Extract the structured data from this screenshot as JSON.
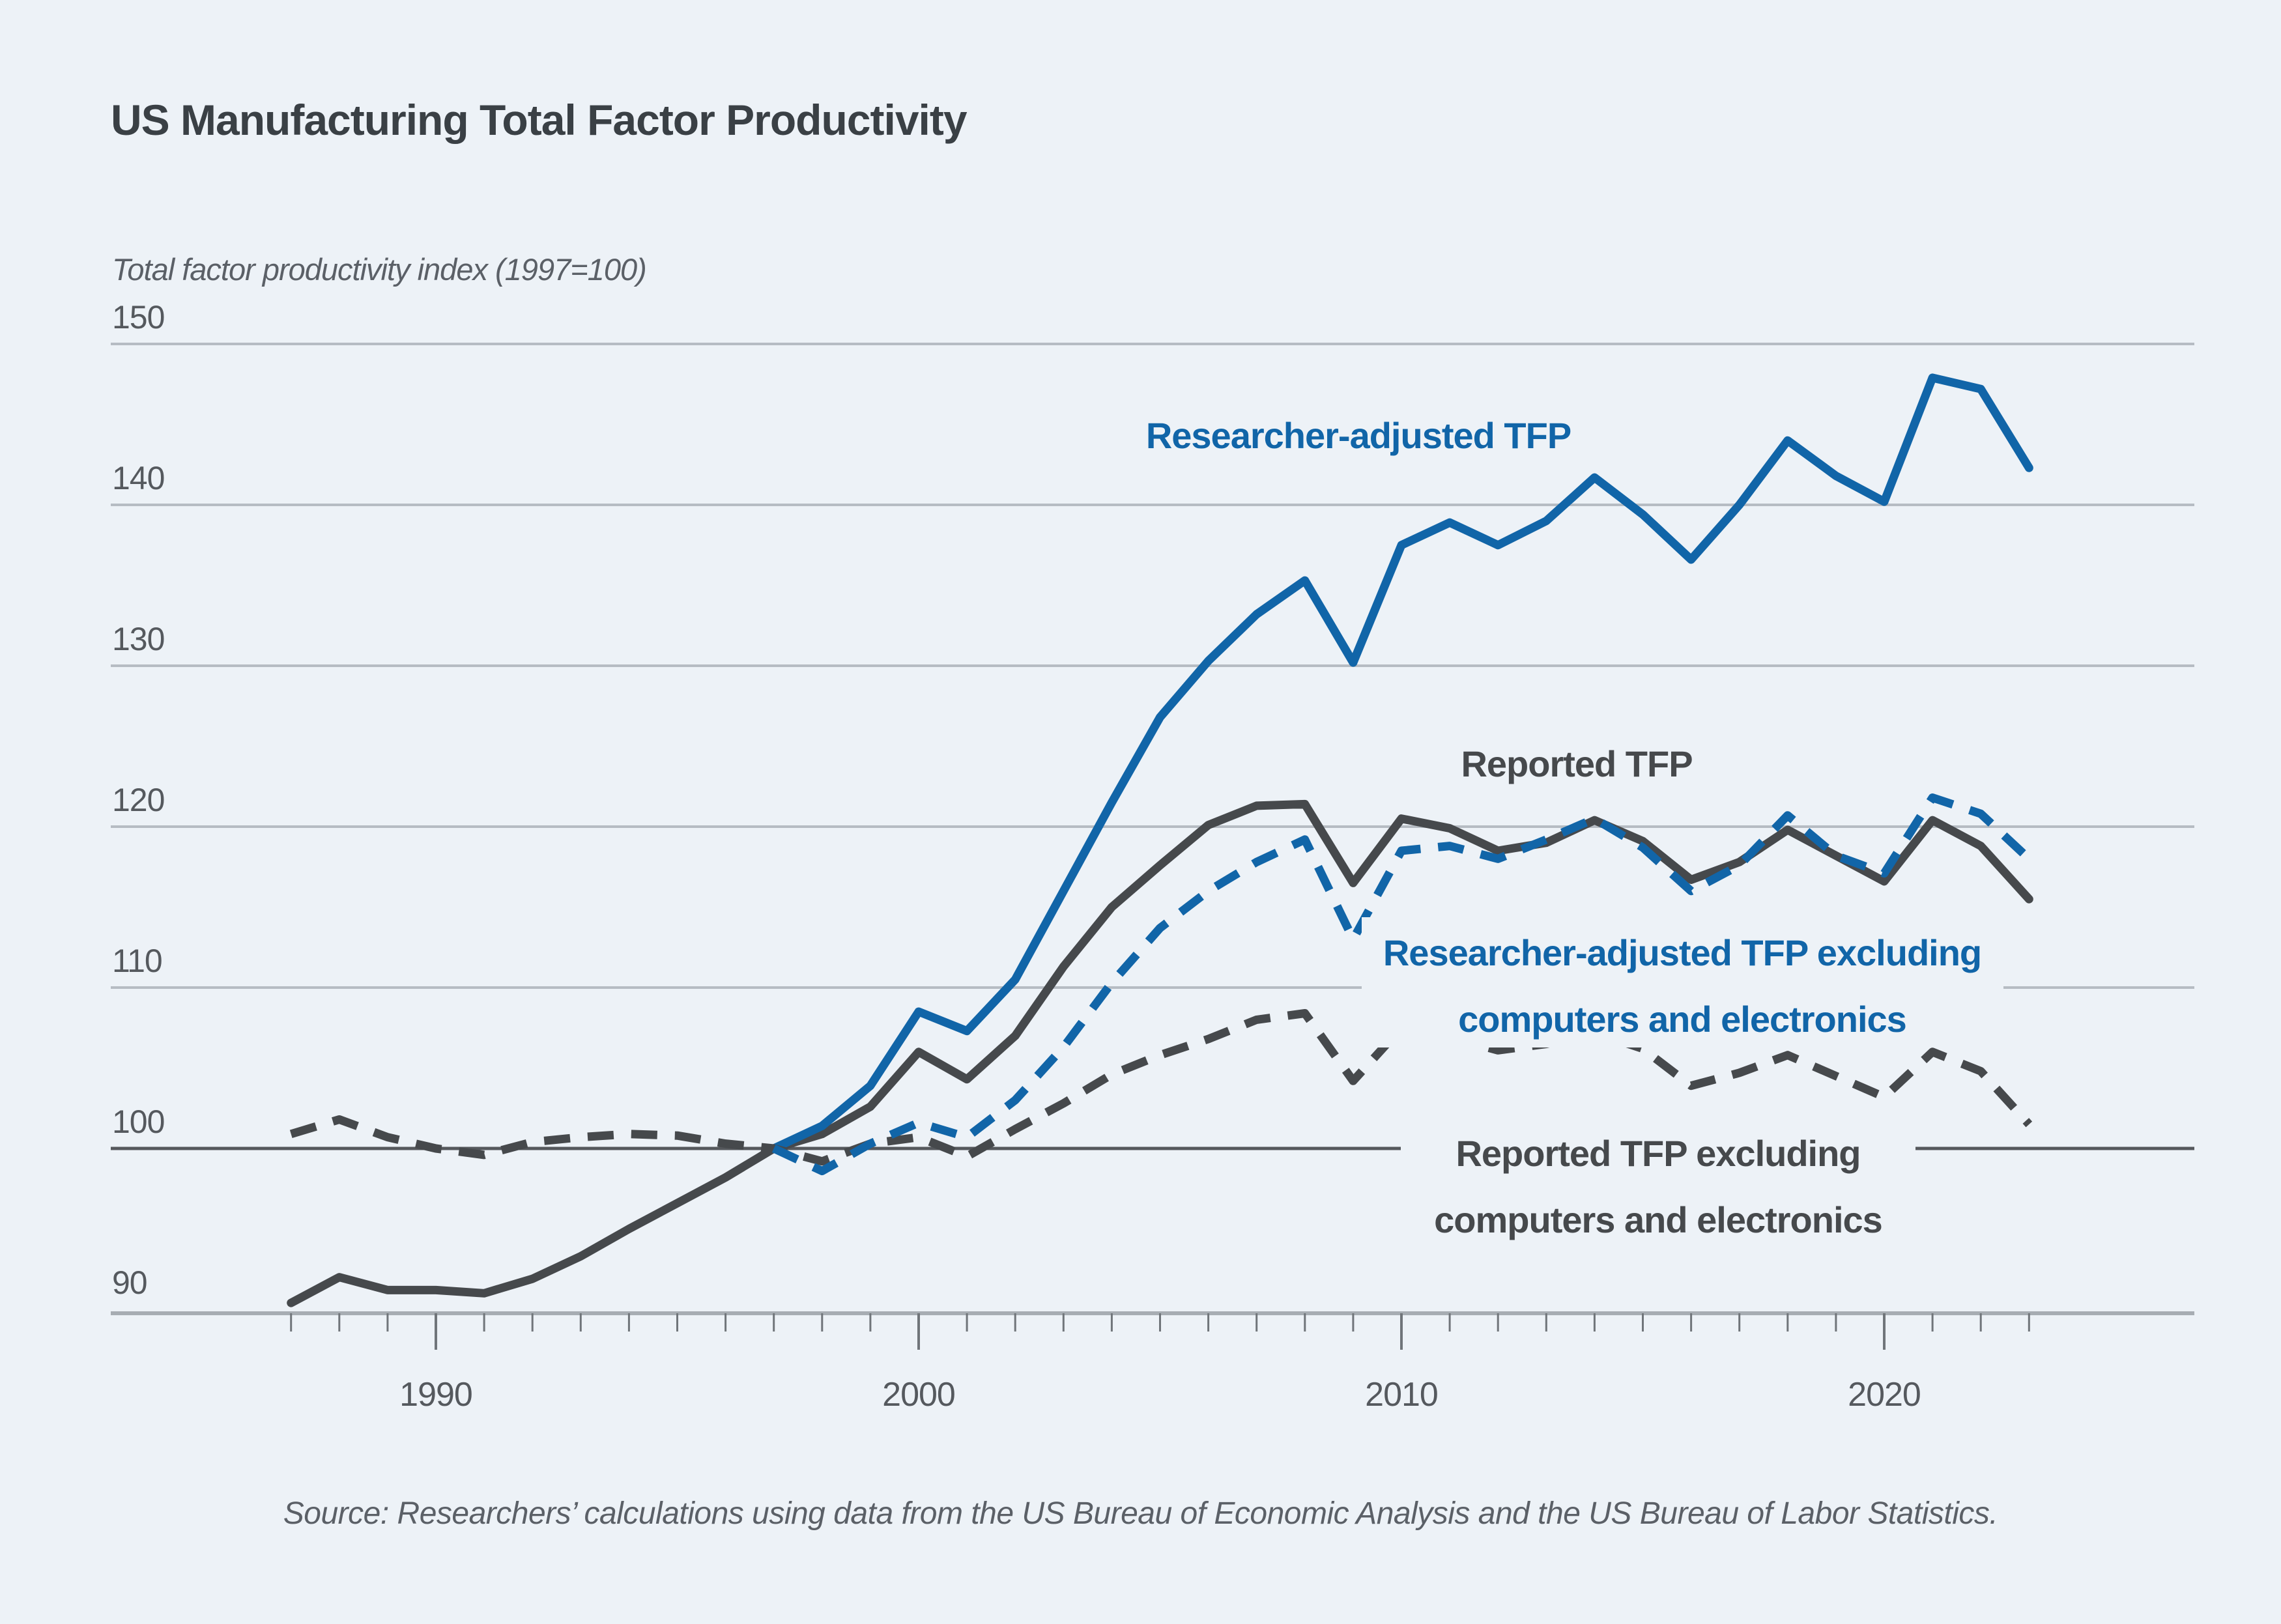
{
  "title": "US Manufacturing Total Factor Productivity",
  "y_axis_title": "Total factor productivity index (1997=100)",
  "source": "Source: Researchers’ calculations using data from the US Bureau of Economic Analysis and the US Bureau of Labor Statistics.",
  "colors": {
    "background": "#edf2f7",
    "blue": "#1165a8",
    "dark": "#46494c",
    "gridline": "#b6bcc3",
    "reference_line": "#55585c",
    "axis_line": "#a7adb3",
    "tick": "#70757a"
  },
  "chart_data": {
    "type": "line",
    "title": "US Manufacturing Total Factor Productivity",
    "xlabel": "",
    "ylabel": "Total factor productivity index (1997=100)",
    "ylim": [
      90,
      150
    ],
    "y_ticks": [
      150,
      140,
      130,
      120,
      110,
      100,
      90
    ],
    "x_ticks": [
      1990,
      2000,
      2010,
      2020
    ],
    "x_range": [
      1987,
      2023
    ],
    "reference_line": 100,
    "grid": "horizontal",
    "legend_position": "inline-labels",
    "series": [
      {
        "id": "reported-tfp",
        "name": "Reported TFP",
        "style": "solid",
        "color": "#46494c",
        "x_start": 1987,
        "values": [
          90.4,
          92.0,
          91.2,
          91.2,
          91.0,
          91.9,
          93.3,
          95.0,
          96.6,
          98.2,
          100.0,
          100.9,
          102.6,
          106.0,
          104.3,
          107.0,
          111.3,
          115.0,
          117.6,
          120.1,
          121.3,
          121.4,
          116.5,
          120.5,
          119.9,
          118.5,
          119.0,
          120.4,
          119.1,
          116.7,
          117.8,
          119.8,
          118.2,
          116.6,
          120.4,
          118.8,
          115.5
        ]
      },
      {
        "id": "researcher-adjusted-tfp",
        "name": "Researcher-adjusted TFP",
        "style": "solid",
        "color": "#1165a8",
        "x_start": 1997,
        "values": [
          100.0,
          101.4,
          103.9,
          108.5,
          107.3,
          110.5,
          116.0,
          121.5,
          126.8,
          130.3,
          133.2,
          135.3,
          130.2,
          137.5,
          138.9,
          137.5,
          139.0,
          141.7,
          139.4,
          136.6,
          140.0,
          144.0,
          141.8,
          140.2,
          147.9,
          147.2,
          142.3
        ]
      },
      {
        "id": "reported-tfp-ex-computers",
        "name": "Reported TFP excluding computers and electronics",
        "style": "dashed",
        "color": "#46494c",
        "x_start": 1987,
        "values": [
          100.9,
          101.8,
          100.7,
          100.0,
          99.6,
          100.4,
          100.7,
          100.9,
          100.8,
          100.3,
          100.0,
          99.2,
          100.3,
          100.7,
          99.5,
          101.2,
          102.8,
          104.6,
          105.8,
          106.8,
          108.0,
          108.4,
          104.2,
          107.5,
          106.9,
          106.1,
          106.5,
          107.2,
          106.2,
          103.9,
          104.7,
          105.8,
          104.5,
          103.2,
          106.0,
          104.8,
          101.5
        ]
      },
      {
        "id": "researcher-adjusted-tfp-ex-computers",
        "name": "Researcher-adjusted TFP excluding computers and electronics",
        "style": "dashed",
        "color": "#1165a8",
        "x_start": 1997,
        "values": [
          100.0,
          98.6,
          100.3,
          101.6,
          100.7,
          103.0,
          106.3,
          110.3,
          113.7,
          116.0,
          117.8,
          119.2,
          113.0,
          118.5,
          118.8,
          118.0,
          119.2,
          120.5,
          118.7,
          116.0,
          117.6,
          120.7,
          118.2,
          117.1,
          121.8,
          120.8,
          118.0
        ]
      }
    ],
    "labels": [
      {
        "series": "researcher-adjusted-tfp",
        "lines": [
          "Researcher-adjusted TFP"
        ]
      },
      {
        "series": "reported-tfp",
        "lines": [
          "Reported TFP"
        ]
      },
      {
        "series": "researcher-adjusted-tfp-ex-computers",
        "lines": [
          "Researcher-adjusted TFP excluding",
          "computers and electronics"
        ]
      },
      {
        "series": "reported-tfp-ex-computers",
        "lines": [
          "Reported TFP excluding",
          "computers and electronics"
        ]
      }
    ]
  }
}
